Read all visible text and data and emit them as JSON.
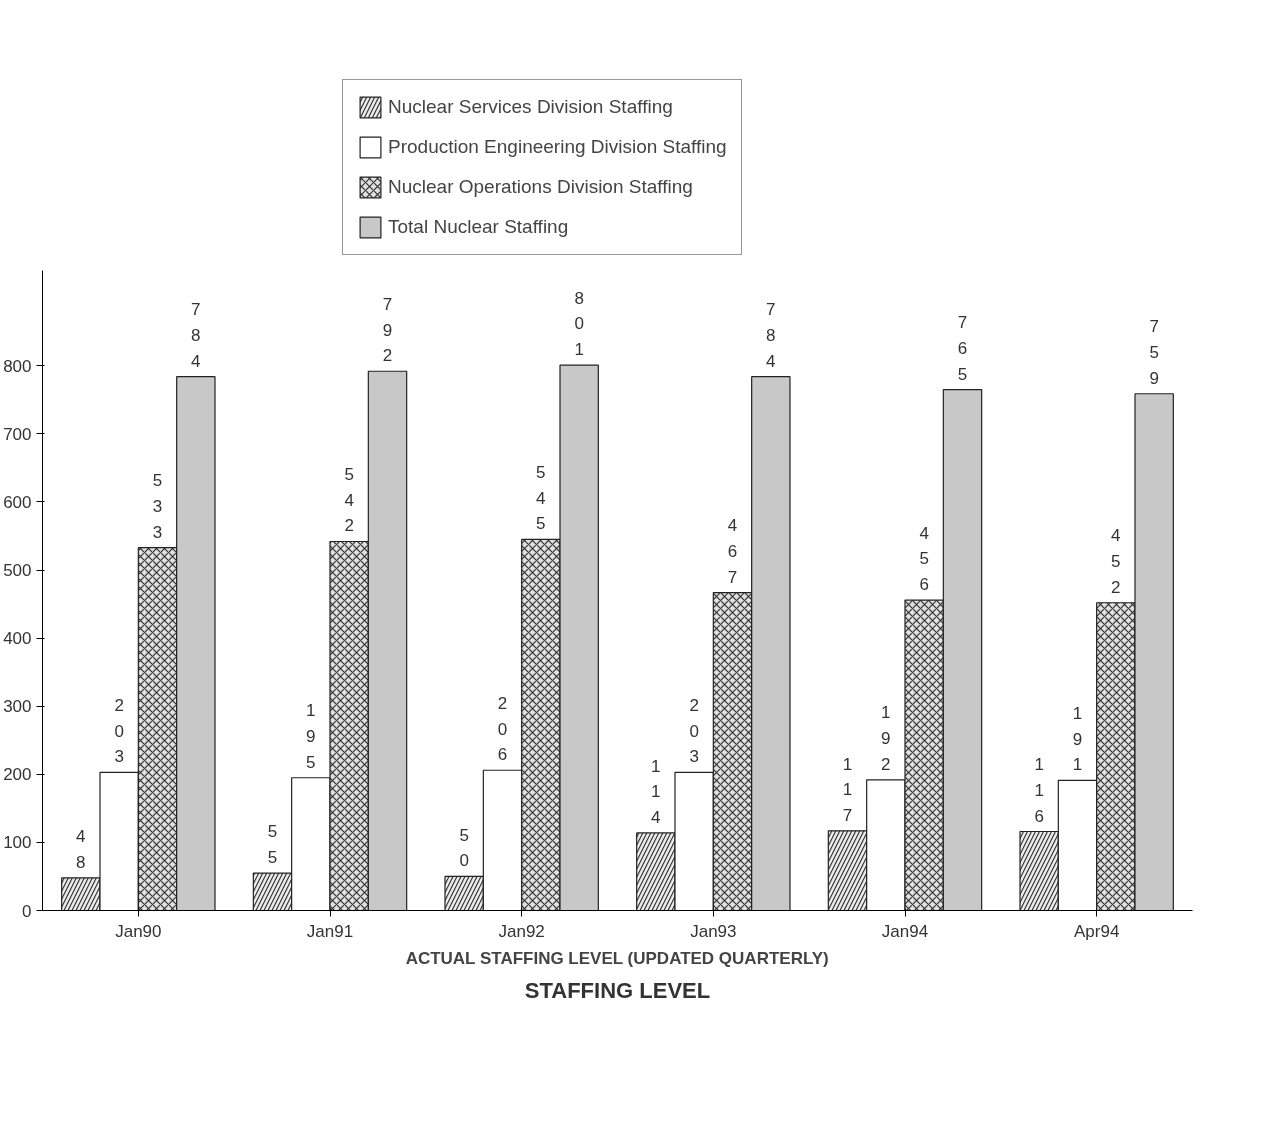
{
  "chart_data": {
    "type": "bar",
    "title": "STAFFING LEVEL",
    "xlabel": "ACTUAL STAFFING LEVEL (UPDATED QUARTERLY)",
    "categories": [
      "Jan90",
      "Jan91",
      "Jan92",
      "Jan93",
      "Jan94",
      "Apr94"
    ],
    "series": [
      {
        "name": "Nuclear Services Division Staffing",
        "color": "#ececec",
        "values": [
          48,
          55,
          50,
          114,
          117,
          116
        ]
      },
      {
        "name": "Production Engineering Division Staffing",
        "color": "#ffffff",
        "values": [
          203,
          195,
          206,
          203,
          192,
          191
        ]
      },
      {
        "name": "Nuclear Operations Division Staffing",
        "color": "#e0e0e0",
        "values": [
          533,
          542,
          545,
          467,
          456,
          452
        ]
      },
      {
        "name": "Total Nuclear Staffing",
        "color": "#c8c8c8",
        "values": [
          784,
          792,
          801,
          784,
          765,
          759
        ]
      }
    ],
    "ylim": [
      0,
      940
    ],
    "yticks": [
      0,
      100,
      200,
      300,
      400,
      500,
      600,
      700,
      800
    ],
    "data_labels": true,
    "grid": false,
    "legend": "top"
  }
}
